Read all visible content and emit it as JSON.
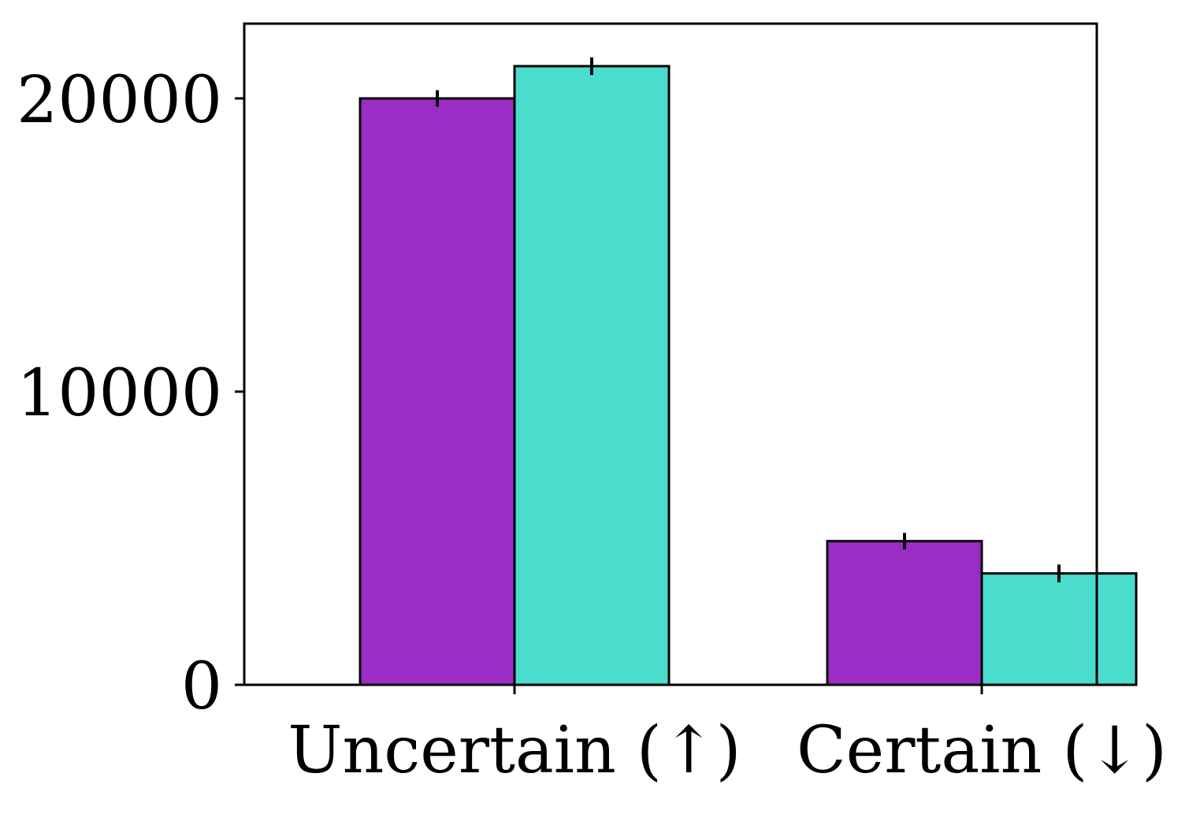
{
  "chart_data": {
    "type": "bar",
    "categories": [
      "Uncertain (↑)",
      "Certain (↓)"
    ],
    "series": [
      {
        "color": "#9b2dc4",
        "values": [
          20000,
          4900
        ],
        "errors": [
          280,
          280
        ]
      },
      {
        "color": "#4adccc",
        "values": [
          21100,
          3800
        ],
        "errors": [
          300,
          300
        ]
      }
    ],
    "yticks": [
      0,
      10000,
      20000
    ],
    "ytick_labels": [
      "0",
      "10000",
      "20000"
    ],
    "ylim": [
      0,
      22550
    ],
    "grid": false,
    "legend": false
  }
}
